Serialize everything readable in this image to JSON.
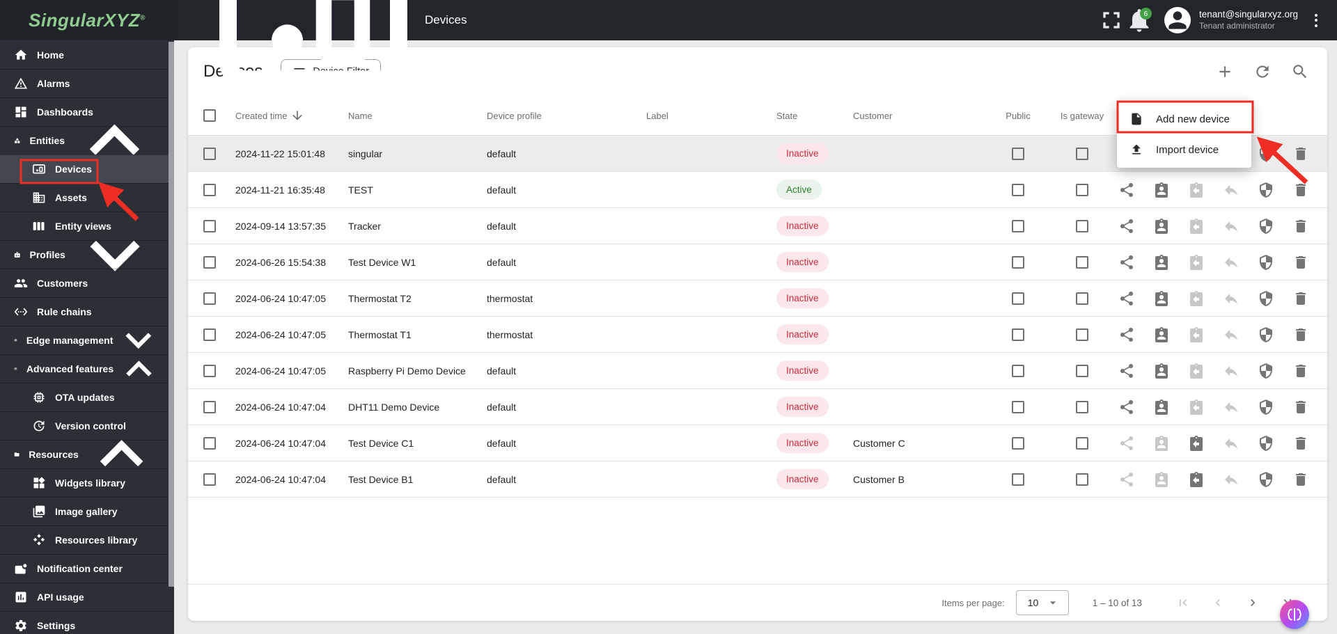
{
  "topbar": {
    "logo": "SingularXYZ",
    "logo_mark": "®",
    "title": "Devices",
    "notification_count": "6",
    "user_email": "tenant@singularxyz.org",
    "user_role": "Tenant administrator",
    "icons": [
      "fullscreen",
      "notifications",
      "avatar",
      "more-vertical"
    ]
  },
  "sidebar": {
    "items": [
      {
        "label": "Home",
        "icon": "home",
        "level": 0
      },
      {
        "label": "Alarms",
        "icon": "alarms",
        "level": 0
      },
      {
        "label": "Dashboards",
        "icon": "dashboards",
        "level": 0
      },
      {
        "label": "Entities",
        "icon": "entities",
        "level": 0,
        "chevron": "up"
      },
      {
        "label": "Devices",
        "icon": "devices",
        "level": 1,
        "active": true
      },
      {
        "label": "Assets",
        "icon": "assets",
        "level": 1
      },
      {
        "label": "Entity views",
        "icon": "entity-views",
        "level": 1
      },
      {
        "label": "Profiles",
        "icon": "profiles",
        "level": 0,
        "chevron": "down"
      },
      {
        "label": "Customers",
        "icon": "customers",
        "level": 0
      },
      {
        "label": "Rule chains",
        "icon": "rule-chains",
        "level": 0
      },
      {
        "label": "Edge management",
        "icon": "edge-management",
        "level": 0,
        "chevron": "down"
      },
      {
        "label": "Advanced features",
        "icon": "advanced-features",
        "level": 0,
        "chevron": "up"
      },
      {
        "label": "OTA updates",
        "icon": "ota-updates",
        "level": 1
      },
      {
        "label": "Version control",
        "icon": "version-control",
        "level": 1
      },
      {
        "label": "Resources",
        "icon": "resources",
        "level": 0,
        "chevron": "up"
      },
      {
        "label": "Widgets library",
        "icon": "widgets-library",
        "level": 1
      },
      {
        "label": "Image gallery",
        "icon": "image-gallery",
        "level": 1
      },
      {
        "label": "Resources library",
        "icon": "resources-library",
        "level": 1
      },
      {
        "label": "Notification center",
        "icon": "notification-center",
        "level": 0
      },
      {
        "label": "API usage",
        "icon": "api-usage",
        "level": 0
      },
      {
        "label": "Settings",
        "icon": "settings",
        "level": 0
      }
    ]
  },
  "page": {
    "title": "Devices",
    "filter_button": "Device Filter",
    "toolbar_icons": [
      "add",
      "refresh",
      "search"
    ]
  },
  "table": {
    "headers": [
      "Created time",
      "Name",
      "Device profile",
      "Label",
      "State",
      "Customer",
      "Public",
      "Is gateway"
    ],
    "sorted_by": "Created time",
    "rows": [
      {
        "created": "2024-11-22 15:01:48",
        "name": "singular",
        "profile": "default",
        "label": "",
        "state": "Inactive",
        "customer": "",
        "assigned": false,
        "highlight": true
      },
      {
        "created": "2024-11-21 16:35:48",
        "name": "TEST",
        "profile": "default",
        "label": "",
        "state": "Active",
        "customer": "",
        "assigned": false,
        "highlight": false
      },
      {
        "created": "2024-09-14 13:57:35",
        "name": "Tracker",
        "profile": "default",
        "label": "",
        "state": "Inactive",
        "customer": "",
        "assigned": false,
        "highlight": false
      },
      {
        "created": "2024-06-26 15:54:38",
        "name": "Test Device W1",
        "profile": "default",
        "label": "",
        "state": "Inactive",
        "customer": "",
        "assigned": false,
        "highlight": false
      },
      {
        "created": "2024-06-24 10:47:05",
        "name": "Thermostat T2",
        "profile": "thermostat",
        "label": "",
        "state": "Inactive",
        "customer": "",
        "assigned": false,
        "highlight": false
      },
      {
        "created": "2024-06-24 10:47:05",
        "name": "Thermostat T1",
        "profile": "thermostat",
        "label": "",
        "state": "Inactive",
        "customer": "",
        "assigned": false,
        "highlight": false
      },
      {
        "created": "2024-06-24 10:47:05",
        "name": "Raspberry Pi Demo Device",
        "profile": "default",
        "label": "",
        "state": "Inactive",
        "customer": "",
        "assigned": false,
        "highlight": false
      },
      {
        "created": "2024-06-24 10:47:04",
        "name": "DHT11 Demo Device",
        "profile": "default",
        "label": "",
        "state": "Inactive",
        "customer": "",
        "assigned": false,
        "highlight": false
      },
      {
        "created": "2024-06-24 10:47:04",
        "name": "Test Device C1",
        "profile": "default",
        "label": "",
        "state": "Inactive",
        "customer": "Customer C",
        "assigned": true,
        "highlight": false
      },
      {
        "created": "2024-06-24 10:47:04",
        "name": "Test Device B1",
        "profile": "default",
        "label": "",
        "state": "Inactive",
        "customer": "Customer B",
        "assigned": true,
        "highlight": false
      }
    ],
    "row_action_icons": [
      "share",
      "assign-customer",
      "unassign-customer",
      "make-private",
      "manage-credentials",
      "delete"
    ],
    "disabled_when_unassigned": [
      "unassign-customer",
      "make-private"
    ],
    "disabled_when_assigned": [
      "share",
      "assign-customer",
      "make-private"
    ]
  },
  "dropdown_menu": {
    "items": [
      {
        "label": "Add new device",
        "icon": "file"
      },
      {
        "label": "Import device",
        "icon": "upload"
      }
    ]
  },
  "pagination": {
    "items_per_page_label": "Items per page:",
    "items_per_page": "10",
    "range": "1 – 10 of 13",
    "nav": [
      {
        "icon": "first-page",
        "disabled": true
      },
      {
        "icon": "chevron-left",
        "disabled": true
      },
      {
        "icon": "chevron-right",
        "disabled": false
      },
      {
        "icon": "last-page",
        "disabled": false
      }
    ]
  },
  "colors": {
    "logo_green": "#8fcb8f",
    "badge_green": "#43a047",
    "state_active_text": "#2f8132",
    "state_active_bg": "#eaf4ea",
    "state_inactive_text": "#d02b3d",
    "state_inactive_bg": "#fbe6ea",
    "annotation_red": "#ee2d24",
    "sidebar_bg": "#2b2f36",
    "topbar_bg": "#22262b"
  }
}
